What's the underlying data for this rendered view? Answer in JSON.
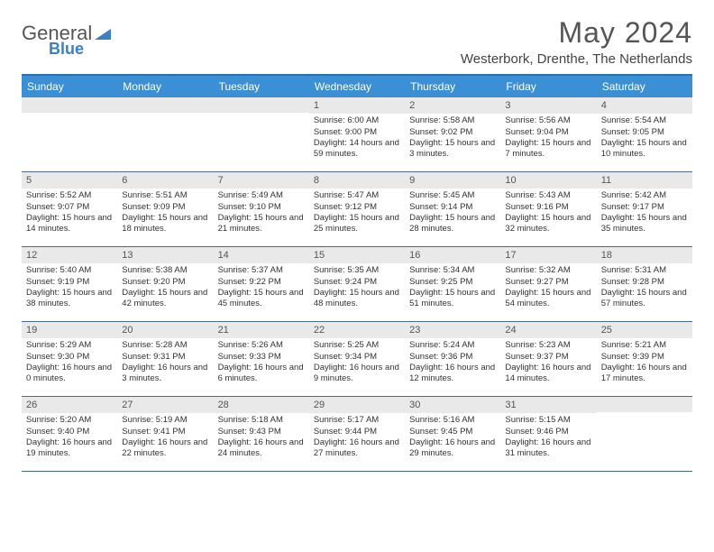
{
  "logo": {
    "part1": "General",
    "part2": "Blue"
  },
  "title": "May 2024",
  "location": "Westerbork, Drenthe, The Netherlands",
  "colors": {
    "header_bar": "#3b8fd4",
    "border_top": "#2e6fa8",
    "daynum_bg": "#e9e9ea",
    "week_border": "#4a6a8a",
    "logo_blue": "#3b7fc4"
  },
  "dayHeaders": [
    "Sunday",
    "Monday",
    "Tuesday",
    "Wednesday",
    "Thursday",
    "Friday",
    "Saturday"
  ],
  "weeks": [
    [
      {
        "blank": true
      },
      {
        "blank": true
      },
      {
        "blank": true
      },
      {
        "day": "1",
        "sunrise": "Sunrise: 6:00 AM",
        "sunset": "Sunset: 9:00 PM",
        "daylight": "Daylight: 14 hours and 59 minutes."
      },
      {
        "day": "2",
        "sunrise": "Sunrise: 5:58 AM",
        "sunset": "Sunset: 9:02 PM",
        "daylight": "Daylight: 15 hours and 3 minutes."
      },
      {
        "day": "3",
        "sunrise": "Sunrise: 5:56 AM",
        "sunset": "Sunset: 9:04 PM",
        "daylight": "Daylight: 15 hours and 7 minutes."
      },
      {
        "day": "4",
        "sunrise": "Sunrise: 5:54 AM",
        "sunset": "Sunset: 9:05 PM",
        "daylight": "Daylight: 15 hours and 10 minutes."
      }
    ],
    [
      {
        "day": "5",
        "sunrise": "Sunrise: 5:52 AM",
        "sunset": "Sunset: 9:07 PM",
        "daylight": "Daylight: 15 hours and 14 minutes."
      },
      {
        "day": "6",
        "sunrise": "Sunrise: 5:51 AM",
        "sunset": "Sunset: 9:09 PM",
        "daylight": "Daylight: 15 hours and 18 minutes."
      },
      {
        "day": "7",
        "sunrise": "Sunrise: 5:49 AM",
        "sunset": "Sunset: 9:10 PM",
        "daylight": "Daylight: 15 hours and 21 minutes."
      },
      {
        "day": "8",
        "sunrise": "Sunrise: 5:47 AM",
        "sunset": "Sunset: 9:12 PM",
        "daylight": "Daylight: 15 hours and 25 minutes."
      },
      {
        "day": "9",
        "sunrise": "Sunrise: 5:45 AM",
        "sunset": "Sunset: 9:14 PM",
        "daylight": "Daylight: 15 hours and 28 minutes."
      },
      {
        "day": "10",
        "sunrise": "Sunrise: 5:43 AM",
        "sunset": "Sunset: 9:16 PM",
        "daylight": "Daylight: 15 hours and 32 minutes."
      },
      {
        "day": "11",
        "sunrise": "Sunrise: 5:42 AM",
        "sunset": "Sunset: 9:17 PM",
        "daylight": "Daylight: 15 hours and 35 minutes."
      }
    ],
    [
      {
        "day": "12",
        "sunrise": "Sunrise: 5:40 AM",
        "sunset": "Sunset: 9:19 PM",
        "daylight": "Daylight: 15 hours and 38 minutes."
      },
      {
        "day": "13",
        "sunrise": "Sunrise: 5:38 AM",
        "sunset": "Sunset: 9:20 PM",
        "daylight": "Daylight: 15 hours and 42 minutes."
      },
      {
        "day": "14",
        "sunrise": "Sunrise: 5:37 AM",
        "sunset": "Sunset: 9:22 PM",
        "daylight": "Daylight: 15 hours and 45 minutes."
      },
      {
        "day": "15",
        "sunrise": "Sunrise: 5:35 AM",
        "sunset": "Sunset: 9:24 PM",
        "daylight": "Daylight: 15 hours and 48 minutes."
      },
      {
        "day": "16",
        "sunrise": "Sunrise: 5:34 AM",
        "sunset": "Sunset: 9:25 PM",
        "daylight": "Daylight: 15 hours and 51 minutes."
      },
      {
        "day": "17",
        "sunrise": "Sunrise: 5:32 AM",
        "sunset": "Sunset: 9:27 PM",
        "daylight": "Daylight: 15 hours and 54 minutes."
      },
      {
        "day": "18",
        "sunrise": "Sunrise: 5:31 AM",
        "sunset": "Sunset: 9:28 PM",
        "daylight": "Daylight: 15 hours and 57 minutes."
      }
    ],
    [
      {
        "day": "19",
        "sunrise": "Sunrise: 5:29 AM",
        "sunset": "Sunset: 9:30 PM",
        "daylight": "Daylight: 16 hours and 0 minutes."
      },
      {
        "day": "20",
        "sunrise": "Sunrise: 5:28 AM",
        "sunset": "Sunset: 9:31 PM",
        "daylight": "Daylight: 16 hours and 3 minutes."
      },
      {
        "day": "21",
        "sunrise": "Sunrise: 5:26 AM",
        "sunset": "Sunset: 9:33 PM",
        "daylight": "Daylight: 16 hours and 6 minutes."
      },
      {
        "day": "22",
        "sunrise": "Sunrise: 5:25 AM",
        "sunset": "Sunset: 9:34 PM",
        "daylight": "Daylight: 16 hours and 9 minutes."
      },
      {
        "day": "23",
        "sunrise": "Sunrise: 5:24 AM",
        "sunset": "Sunset: 9:36 PM",
        "daylight": "Daylight: 16 hours and 12 minutes."
      },
      {
        "day": "24",
        "sunrise": "Sunrise: 5:23 AM",
        "sunset": "Sunset: 9:37 PM",
        "daylight": "Daylight: 16 hours and 14 minutes."
      },
      {
        "day": "25",
        "sunrise": "Sunrise: 5:21 AM",
        "sunset": "Sunset: 9:39 PM",
        "daylight": "Daylight: 16 hours and 17 minutes."
      }
    ],
    [
      {
        "day": "26",
        "sunrise": "Sunrise: 5:20 AM",
        "sunset": "Sunset: 9:40 PM",
        "daylight": "Daylight: 16 hours and 19 minutes."
      },
      {
        "day": "27",
        "sunrise": "Sunrise: 5:19 AM",
        "sunset": "Sunset: 9:41 PM",
        "daylight": "Daylight: 16 hours and 22 minutes."
      },
      {
        "day": "28",
        "sunrise": "Sunrise: 5:18 AM",
        "sunset": "Sunset: 9:43 PM",
        "daylight": "Daylight: 16 hours and 24 minutes."
      },
      {
        "day": "29",
        "sunrise": "Sunrise: 5:17 AM",
        "sunset": "Sunset: 9:44 PM",
        "daylight": "Daylight: 16 hours and 27 minutes."
      },
      {
        "day": "30",
        "sunrise": "Sunrise: 5:16 AM",
        "sunset": "Sunset: 9:45 PM",
        "daylight": "Daylight: 16 hours and 29 minutes."
      },
      {
        "day": "31",
        "sunrise": "Sunrise: 5:15 AM",
        "sunset": "Sunset: 9:46 PM",
        "daylight": "Daylight: 16 hours and 31 minutes."
      },
      {
        "blank": true
      }
    ]
  ]
}
